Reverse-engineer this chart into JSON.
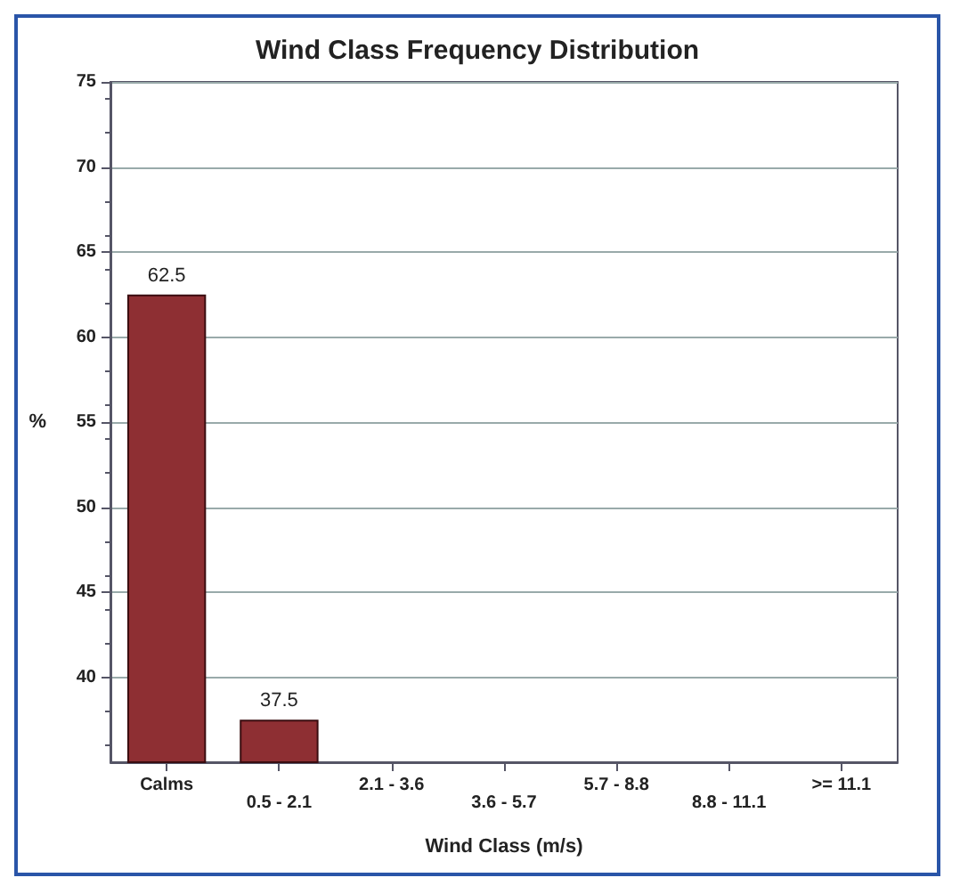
{
  "chart_data": {
    "type": "bar",
    "title": "Wind Class Frequency Distribution",
    "xlabel": "Wind Class (m/s)",
    "ylabel": "%",
    "categories": [
      "Calms",
      "0.5 - 2.1",
      "2.1 - 3.6",
      "3.6 - 5.7",
      "5.7 - 8.8",
      "8.8 - 11.1",
      ">= 11.1"
    ],
    "values": [
      62.5,
      37.5,
      null,
      null,
      null,
      null,
      null
    ],
    "value_labels": [
      "62.5",
      "37.5",
      null,
      null,
      null,
      null,
      null
    ],
    "color": "#8e2f33",
    "ylim": [
      35,
      75
    ],
    "yticks": [
      40,
      45,
      50,
      55,
      60,
      65,
      70,
      75
    ],
    "grid": "y"
  }
}
